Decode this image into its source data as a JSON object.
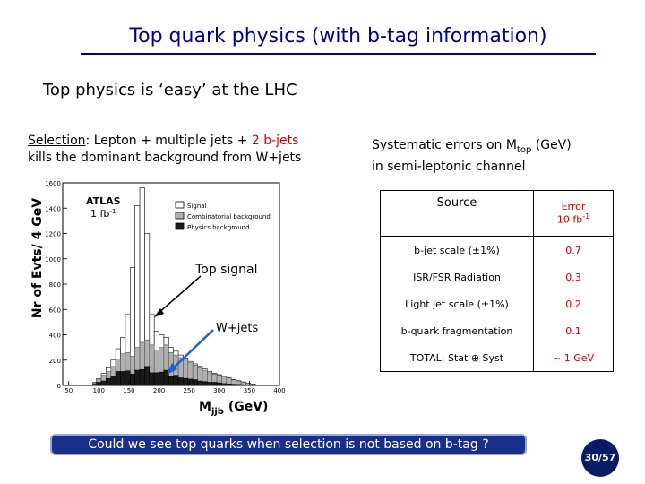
{
  "slide": {
    "title": "Top quark physics (with b-tag information)",
    "subtitle": "Top physics is ‘easy’ at the LHC",
    "selection": {
      "label": "Selection",
      "text_1": ": Lepton + multiple jets + ",
      "highlight": "2 b-jets",
      "text_2": "kills the dominant background from W+jets"
    },
    "systematics": {
      "line1_pre": "Systematic errors on M",
      "line1_sub": "top",
      "line1_post": " (GeV)",
      "line2": "in semi-leptonic channel"
    },
    "question": "Could we see top quarks when selection is not based on b-tag ?",
    "page": "30/57"
  },
  "table": {
    "header_source": "Source",
    "header_error_1": "Error",
    "header_error_2": "10 fb",
    "header_error_sup": "-1",
    "rows": [
      {
        "source": "b-jet scale (±1%)",
        "error": "0.7"
      },
      {
        "source": "ISR/FSR Radiation",
        "error": "0.3"
      },
      {
        "source": "Light jet scale (±1%)",
        "error": "0.2"
      },
      {
        "source": "b-quark fragmentation",
        "error": "0.1"
      },
      {
        "source": "TOTAL: Stat ⊕ Syst",
        "error": "~ 1 GeV"
      }
    ]
  },
  "chart_data": {
    "type": "bar",
    "ylabel": "Nr of Evts/ 4 GeV",
    "xlabel_main": "M",
    "xlabel_sub": "jjb",
    "xlabel_unit": " (GeV)",
    "xlim": [
      40,
      400
    ],
    "ylim": [
      0,
      1600
    ],
    "xticks": [
      "50",
      "100",
      "150",
      "200",
      "250",
      "300",
      "350",
      "400"
    ],
    "xtick_values": [
      50,
      100,
      150,
      200,
      250,
      300,
      350,
      400
    ],
    "yticks": [
      "0",
      "200",
      "400",
      "600",
      "800",
      "1000",
      "1200",
      "1400",
      "1600"
    ],
    "ytick_values": [
      0,
      200,
      400,
      600,
      800,
      1000,
      1200,
      1400,
      1600
    ],
    "experiment": "ATLAS",
    "luminosity": "1 fb",
    "luminosity_sup": "-1",
    "legend": [
      "Signal",
      "Combinatorial background",
      "Physics background"
    ],
    "annotations": {
      "top": "Top signal",
      "wjets": "W+jets"
    },
    "colors": {
      "physics": "#1a1a1a",
      "combinatorial": "#b0b0b0",
      "signal": "#ffffff",
      "arrow": "#1f5fd1"
    },
    "series": [
      {
        "name": "Physics background",
        "bins": [
          {
            "x": 94,
            "y": 10
          },
          {
            "x": 100,
            "y": 25
          },
          {
            "x": 108,
            "y": 35
          },
          {
            "x": 116,
            "y": 55
          },
          {
            "x": 124,
            "y": 70
          },
          {
            "x": 132,
            "y": 110
          },
          {
            "x": 140,
            "y": 110
          },
          {
            "x": 148,
            "y": 115
          },
          {
            "x": 156,
            "y": 90
          },
          {
            "x": 164,
            "y": 120
          },
          {
            "x": 172,
            "y": 125
          },
          {
            "x": 180,
            "y": 150
          },
          {
            "x": 188,
            "y": 100
          },
          {
            "x": 196,
            "y": 100
          },
          {
            "x": 204,
            "y": 105
          },
          {
            "x": 212,
            "y": 120
          },
          {
            "x": 220,
            "y": 70
          },
          {
            "x": 228,
            "y": 80
          },
          {
            "x": 236,
            "y": 60
          },
          {
            "x": 244,
            "y": 55
          },
          {
            "x": 252,
            "y": 50
          },
          {
            "x": 260,
            "y": 45
          },
          {
            "x": 268,
            "y": 35
          },
          {
            "x": 276,
            "y": 30
          },
          {
            "x": 284,
            "y": 25
          },
          {
            "x": 292,
            "y": 25
          },
          {
            "x": 300,
            "y": 20
          },
          {
            "x": 308,
            "y": 15
          },
          {
            "x": 316,
            "y": 12
          },
          {
            "x": 324,
            "y": 10
          },
          {
            "x": 332,
            "y": 8
          },
          {
            "x": 340,
            "y": 6
          }
        ]
      },
      {
        "name": "Combinatorial background",
        "bins": [
          {
            "x": 94,
            "y": 20
          },
          {
            "x": 100,
            "y": 45
          },
          {
            "x": 108,
            "y": 80
          },
          {
            "x": 116,
            "y": 110
          },
          {
            "x": 124,
            "y": 150
          },
          {
            "x": 132,
            "y": 210
          },
          {
            "x": 140,
            "y": 250
          },
          {
            "x": 148,
            "y": 260
          },
          {
            "x": 156,
            "y": 230
          },
          {
            "x": 164,
            "y": 300
          },
          {
            "x": 172,
            "y": 340
          },
          {
            "x": 180,
            "y": 360
          },
          {
            "x": 188,
            "y": 320
          },
          {
            "x": 196,
            "y": 280
          },
          {
            "x": 204,
            "y": 300
          },
          {
            "x": 212,
            "y": 320
          },
          {
            "x": 220,
            "y": 260
          },
          {
            "x": 228,
            "y": 240
          },
          {
            "x": 236,
            "y": 220
          },
          {
            "x": 244,
            "y": 200
          },
          {
            "x": 252,
            "y": 180
          },
          {
            "x": 260,
            "y": 160
          },
          {
            "x": 268,
            "y": 140
          },
          {
            "x": 276,
            "y": 120
          },
          {
            "x": 284,
            "y": 100
          },
          {
            "x": 292,
            "y": 90
          },
          {
            "x": 300,
            "y": 80
          },
          {
            "x": 308,
            "y": 70
          },
          {
            "x": 316,
            "y": 60
          },
          {
            "x": 324,
            "y": 45
          },
          {
            "x": 332,
            "y": 35
          },
          {
            "x": 340,
            "y": 25
          },
          {
            "x": 348,
            "y": 18
          },
          {
            "x": 356,
            "y": 10
          }
        ]
      },
      {
        "name": "Signal",
        "bins": [
          {
            "x": 94,
            "y": 25
          },
          {
            "x": 100,
            "y": 55
          },
          {
            "x": 108,
            "y": 95
          },
          {
            "x": 116,
            "y": 140
          },
          {
            "x": 124,
            "y": 200
          },
          {
            "x": 132,
            "y": 290
          },
          {
            "x": 140,
            "y": 380
          },
          {
            "x": 148,
            "y": 560
          },
          {
            "x": 156,
            "y": 930
          },
          {
            "x": 164,
            "y": 1420
          },
          {
            "x": 172,
            "y": 1560
          },
          {
            "x": 180,
            "y": 1200
          },
          {
            "x": 188,
            "y": 560
          },
          {
            "x": 196,
            "y": 430
          },
          {
            "x": 204,
            "y": 400
          },
          {
            "x": 212,
            "y": 380
          },
          {
            "x": 220,
            "y": 300
          },
          {
            "x": 228,
            "y": 270
          },
          {
            "x": 236,
            "y": 240
          },
          {
            "x": 244,
            "y": 215
          },
          {
            "x": 252,
            "y": 190
          },
          {
            "x": 260,
            "y": 170
          },
          {
            "x": 268,
            "y": 150
          },
          {
            "x": 276,
            "y": 130
          },
          {
            "x": 284,
            "y": 110
          },
          {
            "x": 292,
            "y": 95
          },
          {
            "x": 300,
            "y": 85
          },
          {
            "x": 308,
            "y": 75
          },
          {
            "x": 316,
            "y": 62
          },
          {
            "x": 324,
            "y": 48
          },
          {
            "x": 332,
            "y": 38
          },
          {
            "x": 340,
            "y": 28
          },
          {
            "x": 348,
            "y": 20
          },
          {
            "x": 356,
            "y": 12
          }
        ]
      }
    ]
  }
}
